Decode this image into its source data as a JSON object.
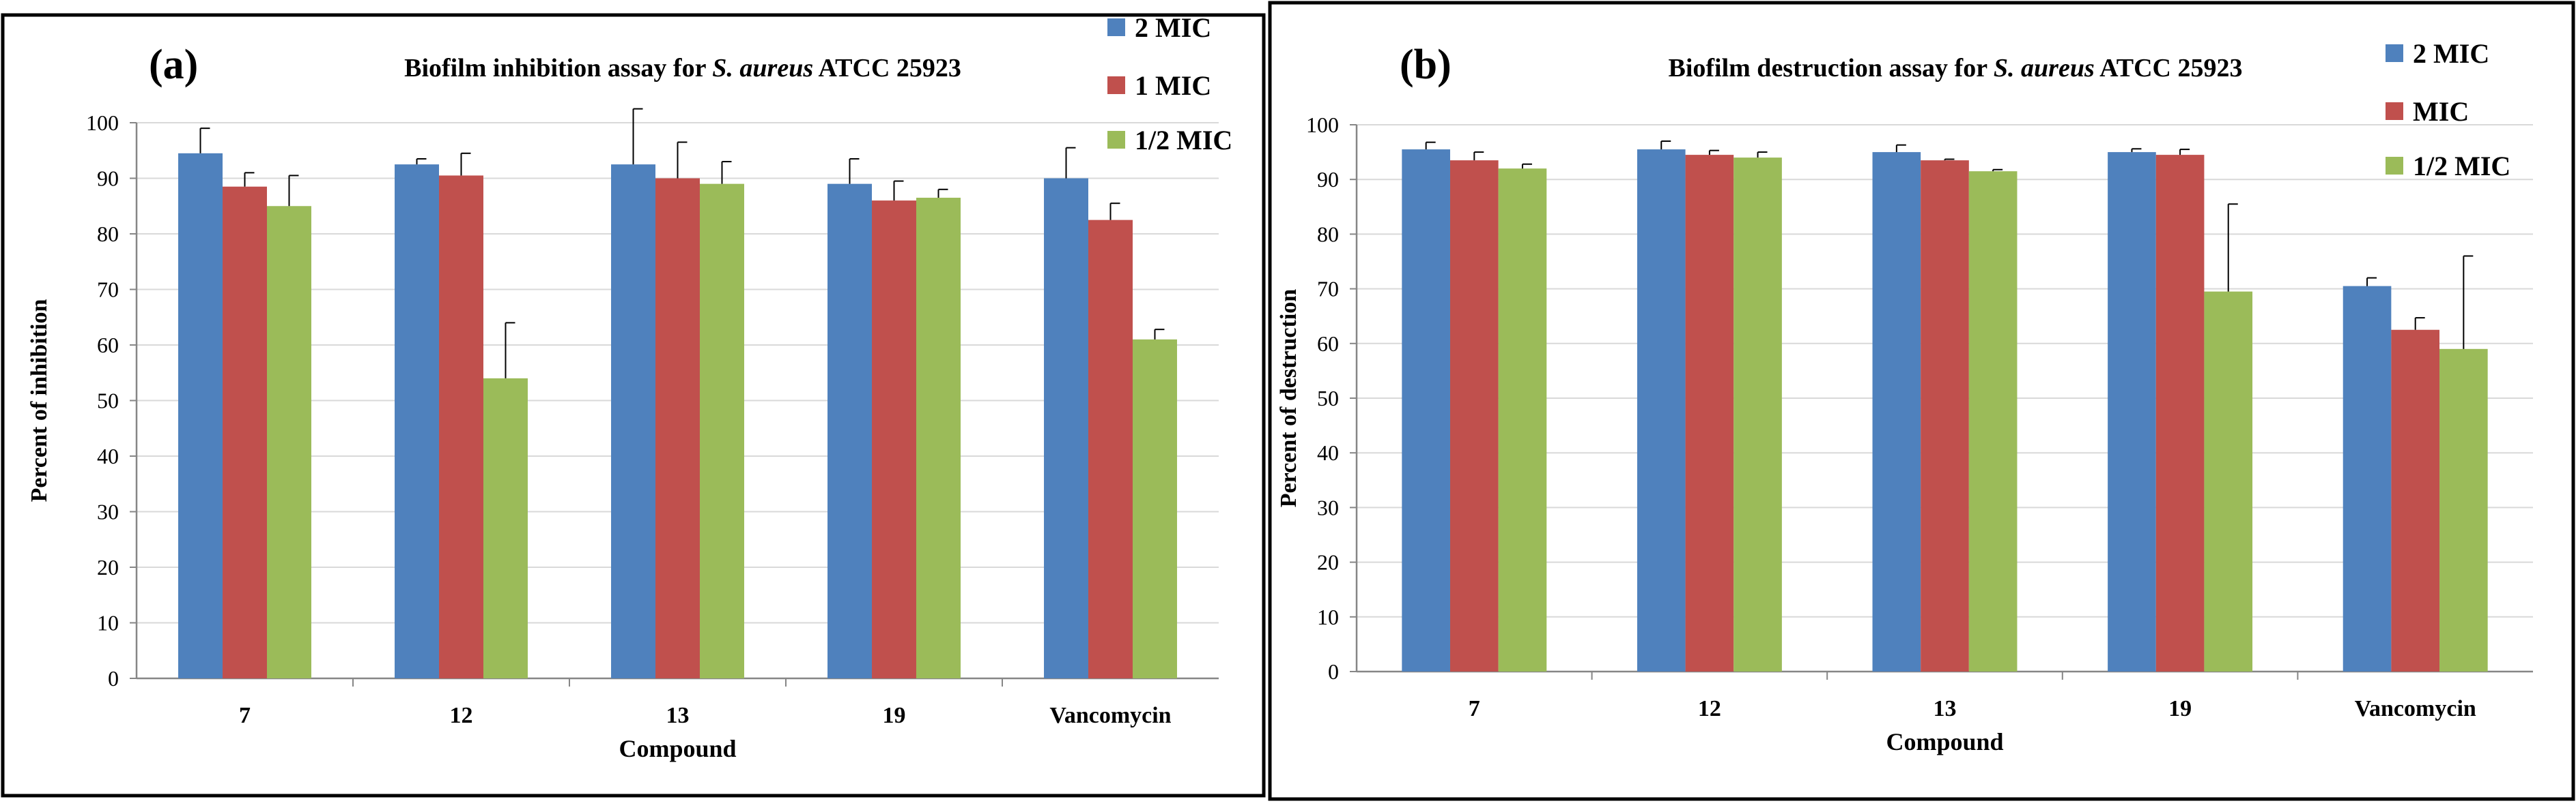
{
  "colors": {
    "series": [
      "#4F81BD",
      "#C0504D",
      "#9BBB59"
    ],
    "axis": "#868686",
    "grid": "#D9D9D9",
    "text": "#000000",
    "frame": "#000000"
  },
  "chart_data": [
    {
      "type": "bar",
      "panel_label": "(a)",
      "title": {
        "prefix": "Biofilm inhibition assay for ",
        "italic": "S. aureus",
        "suffix": " ATCC 25923"
      },
      "xlabel": "Compound",
      "ylabel": "Percent of inhibition",
      "ylim": [
        0,
        100
      ],
      "yticks": [
        0,
        10,
        20,
        30,
        40,
        50,
        60,
        70,
        80,
        90,
        100
      ],
      "ytick_labels": [
        "0",
        "10",
        "20",
        "30",
        "40",
        "50",
        "60",
        "70",
        "80",
        "90",
        "100"
      ],
      "grid": true,
      "legend_position": "top-right",
      "categories": [
        "7",
        "12",
        "13",
        "19",
        "Vancomycin"
      ],
      "series": [
        {
          "name": "2 MIC",
          "values": [
            94.5,
            92.5,
            92.5,
            89,
            90
          ],
          "errors": [
            4.5,
            1,
            10,
            4.5,
            5.5
          ]
        },
        {
          "name": "1 MIC",
          "values": [
            88.5,
            90.5,
            90,
            86,
            82.5
          ],
          "errors": [
            2.5,
            4,
            6.5,
            3.5,
            3
          ]
        },
        {
          "name": "1/2 MIC",
          "values": [
            85,
            54,
            89,
            86.5,
            61
          ],
          "errors": [
            5.5,
            10,
            4,
            1.5,
            1.8
          ]
        }
      ]
    },
    {
      "type": "bar",
      "panel_label": "(b)",
      "title": {
        "prefix": "Biofilm destruction assay for ",
        "italic": "S. aureus",
        "suffix": " ATCC 25923"
      },
      "xlabel": "Compound",
      "ylabel": "Percent of destruction",
      "ylim": [
        0,
        100
      ],
      "yticks": [
        0,
        10,
        20,
        30,
        40,
        50,
        60,
        70,
        80,
        90,
        100
      ],
      "ytick_labels": [
        "0",
        "10",
        "20",
        "30",
        "40",
        "50",
        "60",
        "70",
        "80",
        "90",
        "100"
      ],
      "grid": true,
      "legend_position": "top-right",
      "categories": [
        "7",
        "12",
        "13",
        "19",
        "Vancomycin"
      ],
      "series": [
        {
          "name": "2 MIC",
          "values": [
            95.5,
            95.5,
            95,
            95,
            70.5
          ],
          "errors": [
            1.3,
            1.5,
            1.3,
            0.6,
            1.5
          ]
        },
        {
          "name": "MIC",
          "values": [
            93.5,
            94.5,
            93.5,
            94.5,
            62.5
          ],
          "errors": [
            1.5,
            0.8,
            0.2,
            1,
            2.2
          ]
        },
        {
          "name": "1/2 MIC",
          "values": [
            92,
            94,
            91.5,
            69.5,
            59
          ],
          "errors": [
            0.8,
            1,
            0.3,
            16,
            17
          ]
        }
      ]
    }
  ]
}
